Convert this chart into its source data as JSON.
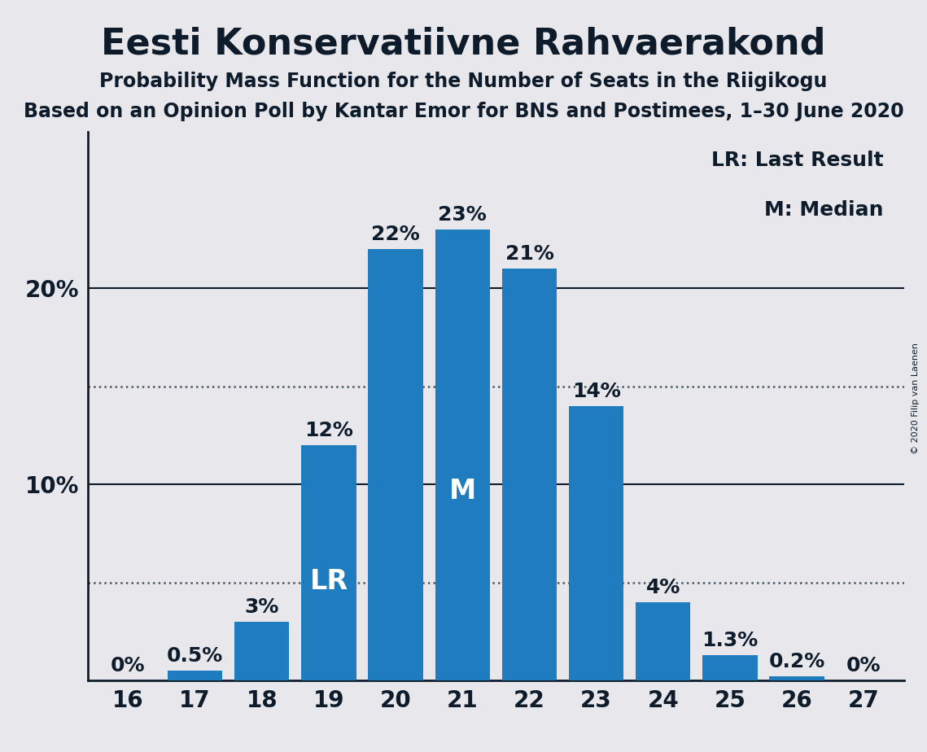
{
  "title": "Eesti Konservatiivne Rahvaerakond",
  "subtitle1": "Probability Mass Function for the Number of Seats in the Riigikogu",
  "subtitle2": "Based on an Opinion Poll by Kantar Emor for BNS and Postimees, 1–30 June 2020",
  "copyright": "© 2020 Filip van Laenen",
  "categories": [
    16,
    17,
    18,
    19,
    20,
    21,
    22,
    23,
    24,
    25,
    26,
    27
  ],
  "values": [
    0.0,
    0.5,
    3.0,
    12.0,
    22.0,
    23.0,
    21.0,
    14.0,
    4.0,
    1.3,
    0.2,
    0.0
  ],
  "labels": [
    "0%",
    "0.5%",
    "3%",
    "12%",
    "22%",
    "23%",
    "21%",
    "14%",
    "4%",
    "1.3%",
    "0.2%",
    "0%"
  ],
  "bar_color": "#1f7dbf",
  "background_color": "#e8e8ec",
  "text_color": "#0d1b2a",
  "bar_label_color_dark": "#0d1b2a",
  "bar_label_color_light": "#ffffff",
  "lr_bar": 19,
  "median_bar": 21,
  "legend_lr": "LR: Last Result",
  "legend_m": "M: Median",
  "dotted_lines": [
    5.0,
    15.0
  ],
  "solid_lines": [
    10,
    20
  ],
  "ytick_values": [
    10,
    20
  ],
  "ytick_labels": [
    "10%",
    "20%"
  ],
  "ylim": [
    0,
    28
  ],
  "title_fontsize": 32,
  "subtitle_fontsize": 17,
  "axis_fontsize": 20,
  "bar_label_fontsize": 18,
  "legend_fontsize": 18,
  "inner_label_fontsize": 24
}
